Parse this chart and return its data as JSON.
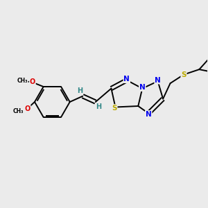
{
  "background_color": "#ebebeb",
  "atom_colors": {
    "C": "#000000",
    "N": "#0000ee",
    "O": "#dd0000",
    "S": "#bbaa00",
    "H": "#338888"
  },
  "figsize": [
    3.0,
    3.0
  ],
  "dpi": 100,
  "lw": 1.4
}
